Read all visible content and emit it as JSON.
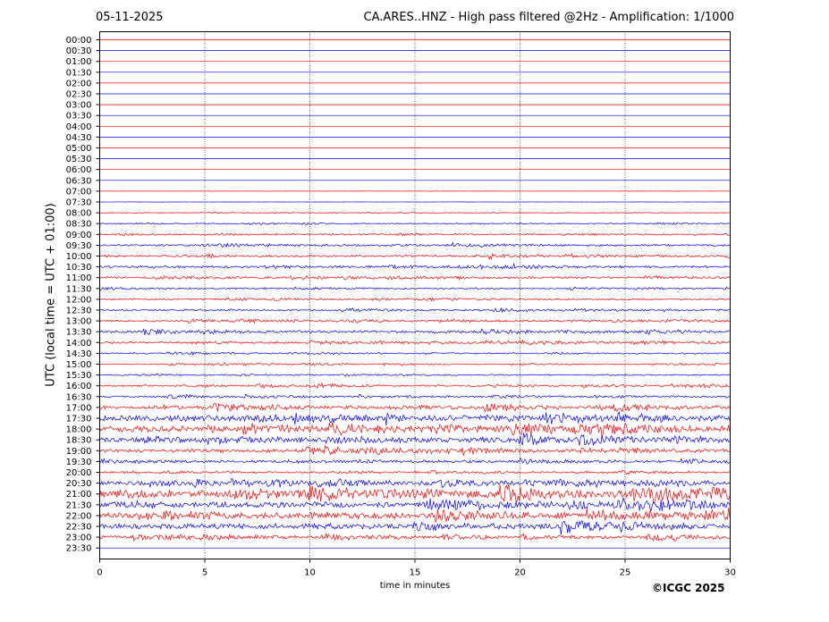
{
  "header": {
    "date": "05-11-2025",
    "title": "CA.ARES..HNZ - High pass filtered @2Hz - Amplification: 1/1000"
  },
  "footer": {
    "copyright": "©ICGC 2025"
  },
  "colors": {
    "red": "#ff0000",
    "blue": "#0000ff",
    "grid": "#000000"
  },
  "chart_data": {
    "type": "line",
    "title": "CA.ARES..HNZ - High pass filtered @2Hz - Amplification: 1/1000",
    "xlabel": "time in minutes",
    "ylabel": "UTC (local time = UTC + 01:00)",
    "xlim": [
      0,
      30
    ],
    "xticks": [
      "0",
      "5",
      "10",
      "15",
      "20",
      "25",
      "30"
    ],
    "grid": "vertical dotted lines at 5-minute intervals",
    "rows": [
      {
        "label": "00:00",
        "color": "red",
        "amp": 0
      },
      {
        "label": "00:30",
        "color": "blue",
        "amp": 0
      },
      {
        "label": "01:00",
        "color": "red",
        "amp": 0
      },
      {
        "label": "01:30",
        "color": "blue",
        "amp": 0
      },
      {
        "label": "02:00",
        "color": "red",
        "amp": 0
      },
      {
        "label": "02:30",
        "color": "blue",
        "amp": 0
      },
      {
        "label": "03:00",
        "color": "red",
        "amp": 0
      },
      {
        "label": "03:30",
        "color": "blue",
        "amp": 0
      },
      {
        "label": "04:00",
        "color": "red",
        "amp": 0
      },
      {
        "label": "04:30",
        "color": "blue",
        "amp": 0
      },
      {
        "label": "05:00",
        "color": "red",
        "amp": 0
      },
      {
        "label": "05:30",
        "color": "blue",
        "amp": 0
      },
      {
        "label": "06:00",
        "color": "red",
        "amp": 0
      },
      {
        "label": "06:30",
        "color": "blue",
        "amp": 0
      },
      {
        "label": "07:00",
        "color": "red",
        "amp": 0.1
      },
      {
        "label": "07:30",
        "color": "blue",
        "amp": 0.1
      },
      {
        "label": "08:00",
        "color": "red",
        "amp": 0.4
      },
      {
        "label": "08:30",
        "color": "blue",
        "amp": 0.6
      },
      {
        "label": "09:00",
        "color": "red",
        "amp": 0.8
      },
      {
        "label": "09:30",
        "color": "blue",
        "amp": 1.3
      },
      {
        "label": "10:00",
        "color": "red",
        "amp": 1.4
      },
      {
        "label": "10:30",
        "color": "blue",
        "amp": 1.4
      },
      {
        "label": "11:00",
        "color": "red",
        "amp": 1.3
      },
      {
        "label": "11:30",
        "color": "blue",
        "amp": 0.9
      },
      {
        "label": "12:00",
        "color": "red",
        "amp": 1.0
      },
      {
        "label": "12:30",
        "color": "blue",
        "amp": 1.2
      },
      {
        "label": "13:00",
        "color": "red",
        "amp": 1.2
      },
      {
        "label": "13:30",
        "color": "blue",
        "amp": 1.6
      },
      {
        "label": "14:00",
        "color": "red",
        "amp": 1.3
      },
      {
        "label": "14:30",
        "color": "blue",
        "amp": 0.8
      },
      {
        "label": "15:00",
        "color": "red",
        "amp": 0.7
      },
      {
        "label": "15:30",
        "color": "blue",
        "amp": 0.8
      },
      {
        "label": "16:00",
        "color": "red",
        "amp": 1.1
      },
      {
        "label": "16:30",
        "color": "blue",
        "amp": 1.1
      },
      {
        "label": "17:00",
        "color": "red",
        "amp": 2.2
      },
      {
        "label": "17:30",
        "color": "blue",
        "amp": 3.6
      },
      {
        "label": "18:00",
        "color": "red",
        "amp": 4.0
      },
      {
        "label": "18:30",
        "color": "blue",
        "amp": 3.2
      },
      {
        "label": "19:00",
        "color": "red",
        "amp": 2.2
      },
      {
        "label": "19:30",
        "color": "blue",
        "amp": 1.6
      },
      {
        "label": "20:00",
        "color": "red",
        "amp": 1.0
      },
      {
        "label": "20:30",
        "color": "blue",
        "amp": 2.6
      },
      {
        "label": "21:00",
        "color": "red",
        "amp": 5.0
      },
      {
        "label": "21:30",
        "color": "blue",
        "amp": 3.6
      },
      {
        "label": "22:00",
        "color": "red",
        "amp": 3.8
      },
      {
        "label": "22:30",
        "color": "blue",
        "amp": 3.4
      },
      {
        "label": "23:00",
        "color": "red",
        "amp": 2.0
      },
      {
        "label": "23:30",
        "color": "blue",
        "amp": 0
      }
    ]
  }
}
